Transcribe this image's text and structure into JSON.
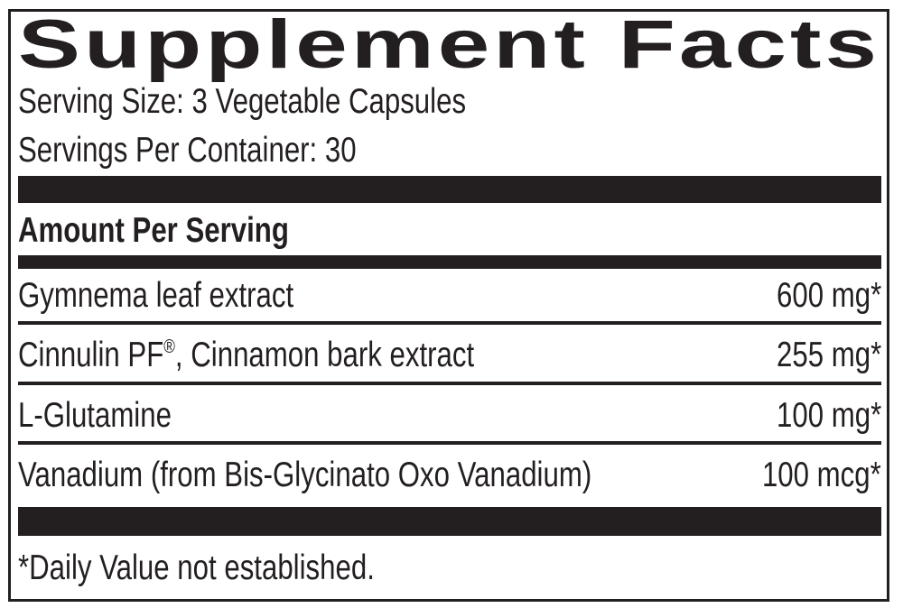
{
  "label": {
    "title": "Supplement Facts",
    "serving_size": "Serving Size: 3 Vegetable Capsules",
    "servings_per_container": "Servings Per Container: 30",
    "amount_header": "Amount Per Serving",
    "rows": [
      {
        "name": "Gymnema leaf extract",
        "amount": "600 mg*"
      },
      {
        "name_pre": "Cinnulin PF",
        "name_mark": "®",
        "name_post": ", Cinnamon bark extract",
        "amount": "255 mg*"
      },
      {
        "name": "L-Glutamine",
        "amount": "100 mg*"
      },
      {
        "name": "Vanadium (from Bis-Glycinato Oxo Vanadium)",
        "amount": "100 mcg*"
      }
    ],
    "footnote": "*Daily Value not established."
  }
}
